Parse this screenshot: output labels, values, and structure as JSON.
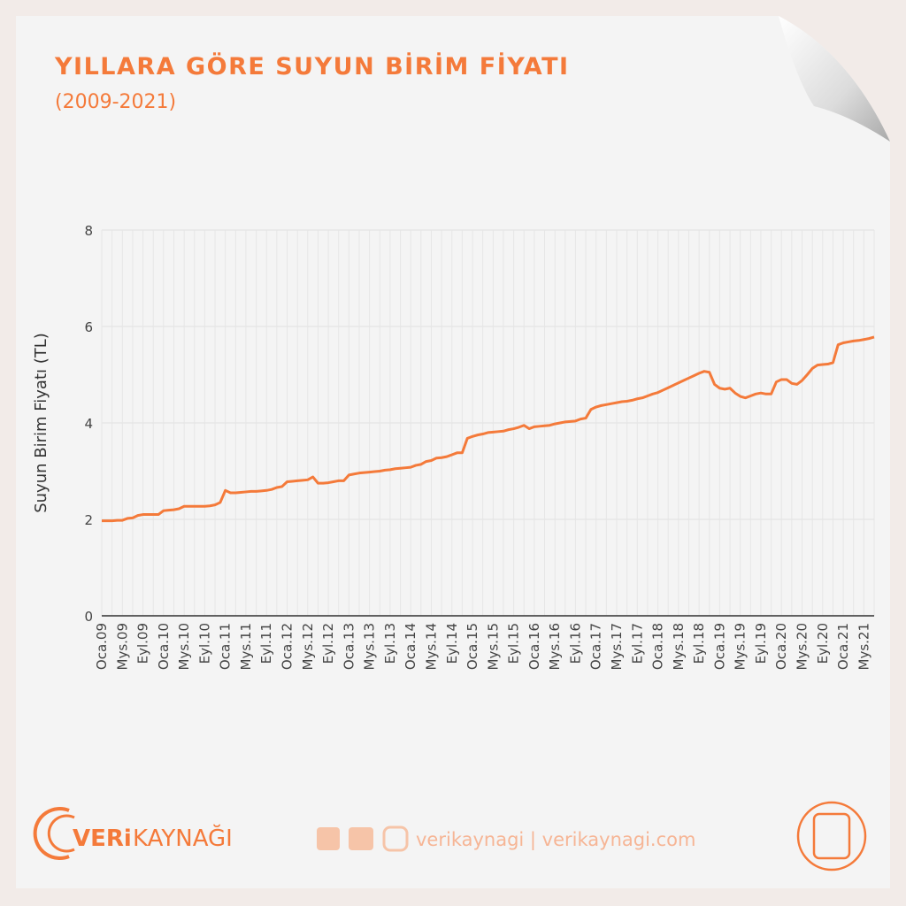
{
  "chart_data": {
    "type": "line",
    "title": "YILLARA GÖRE SUYUN BİRİM FİYATI",
    "subtitle": "(2009-2021)",
    "y_label": "Suyun Birim Fiyatı (TL)",
    "color": "#f47a3a",
    "grid": true,
    "ylim": [
      0,
      8
    ],
    "yticks": [
      0,
      2,
      4,
      6,
      8
    ],
    "categories": [
      "Oca.09",
      null,
      null,
      null,
      "Mys.09",
      null,
      null,
      null,
      "Eyl.09",
      null,
      null,
      null,
      "Oca.10",
      null,
      null,
      null,
      "Mys.10",
      null,
      null,
      null,
      "Eyl.10",
      null,
      null,
      null,
      "Oca.11",
      null,
      null,
      null,
      "Mys.11",
      null,
      null,
      null,
      "Eyl.11",
      null,
      null,
      null,
      "Oca.12",
      null,
      null,
      null,
      "Mys.12",
      null,
      null,
      null,
      "Eyl.12",
      null,
      null,
      null,
      "Oca.13",
      null,
      null,
      null,
      "Mys.13",
      null,
      null,
      null,
      "Eyl.13",
      null,
      null,
      null,
      "Oca.14",
      null,
      null,
      null,
      "Mys.14",
      null,
      null,
      null,
      "Eyl.14",
      null,
      null,
      null,
      "Oca.15",
      null,
      null,
      null,
      "Mys.15",
      null,
      null,
      null,
      "Eyl.15",
      null,
      null,
      null,
      "Oca.16",
      null,
      null,
      null,
      "Mys.16",
      null,
      null,
      null,
      "Eyl.16",
      null,
      null,
      null,
      "Oca.17",
      null,
      null,
      null,
      "Mys.17",
      null,
      null,
      null,
      "Eyl.17",
      null,
      null,
      null,
      "Oca.18",
      null,
      null,
      null,
      "Mys.18",
      null,
      null,
      null,
      "Eyl.18",
      null,
      null,
      null,
      "Oca.19",
      null,
      null,
      null,
      "Mys.19",
      null,
      null,
      null,
      "Eyl.19",
      null,
      null,
      null,
      "Oca.20",
      null,
      null,
      null,
      "Mys.20",
      null,
      null,
      null,
      "Eyl.20",
      null,
      null,
      null,
      "Oca.21",
      null,
      null,
      null,
      "Mys.21",
      null,
      null
    ],
    "values": [
      1.97,
      1.97,
      1.97,
      1.98,
      1.98,
      2.02,
      2.03,
      2.08,
      2.1,
      2.1,
      2.1,
      2.1,
      2.18,
      2.19,
      2.2,
      2.22,
      2.27,
      2.27,
      2.27,
      2.27,
      2.27,
      2.28,
      2.3,
      2.35,
      2.6,
      2.55,
      2.55,
      2.56,
      2.57,
      2.58,
      2.58,
      2.59,
      2.6,
      2.62,
      2.66,
      2.68,
      2.78,
      2.79,
      2.8,
      2.81,
      2.82,
      2.88,
      2.75,
      2.75,
      2.76,
      2.78,
      2.8,
      2.8,
      2.92,
      2.94,
      2.96,
      2.97,
      2.98,
      2.99,
      3.0,
      3.02,
      3.03,
      3.05,
      3.06,
      3.07,
      3.08,
      3.12,
      3.14,
      3.2,
      3.22,
      3.27,
      3.28,
      3.3,
      3.34,
      3.38,
      3.38,
      3.68,
      3.72,
      3.75,
      3.77,
      3.8,
      3.81,
      3.82,
      3.83,
      3.86,
      3.88,
      3.91,
      3.95,
      3.88,
      3.92,
      3.93,
      3.94,
      3.95,
      3.98,
      4.0,
      4.02,
      4.03,
      4.04,
      4.08,
      4.1,
      4.28,
      4.33,
      4.36,
      4.38,
      4.4,
      4.42,
      4.44,
      4.45,
      4.47,
      4.5,
      4.52,
      4.56,
      4.6,
      4.63,
      4.68,
      4.73,
      4.78,
      4.83,
      4.88,
      4.93,
      4.98,
      5.03,
      5.07,
      5.05,
      4.8,
      4.72,
      4.7,
      4.72,
      4.62,
      4.55,
      4.52,
      4.56,
      4.6,
      4.62,
      4.6,
      4.6,
      4.85,
      4.9,
      4.9,
      4.82,
      4.8,
      4.88,
      5.0,
      5.13,
      5.2,
      5.21,
      5.22,
      5.25,
      5.62,
      5.66,
      5.68,
      5.7,
      5.71,
      5.73,
      5.75,
      5.78
    ]
  },
  "branding": {
    "logo_left": "VERi",
    "logo_right": "KAYNAĞI",
    "handles": "verikaynagi | verikaynagi.com"
  }
}
